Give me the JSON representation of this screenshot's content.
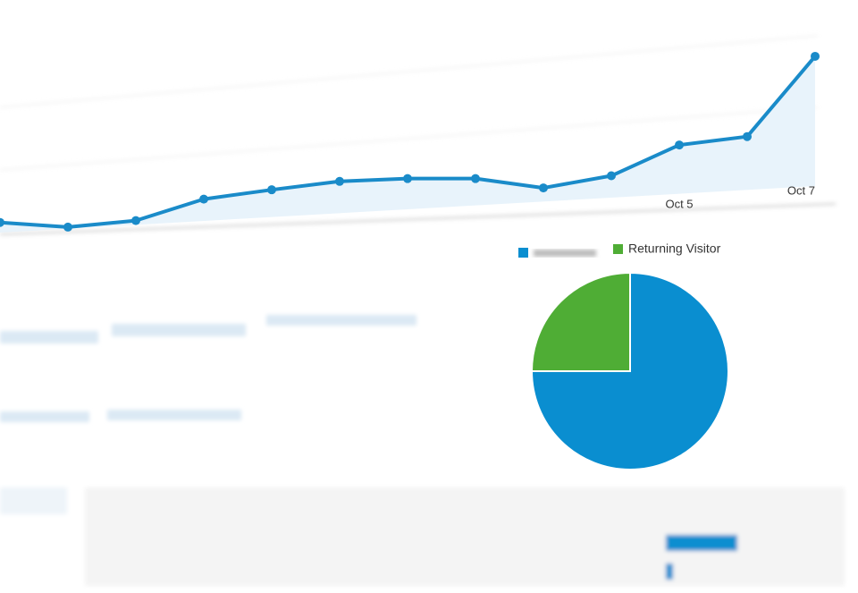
{
  "chart_data": [
    {
      "type": "line",
      "categories": [
        null,
        null,
        null,
        null,
        null,
        null,
        null,
        null,
        null,
        null,
        "Oct 5",
        null,
        "Oct 7"
      ],
      "series": [
        {
          "color": "#1a8bc9",
          "values": [
            30,
            25,
            32,
            55,
            65,
            74,
            77,
            77,
            67,
            80,
            113,
            122,
            208
          ]
        }
      ],
      "ylim": [
        0,
        230
      ]
    },
    {
      "type": "pie",
      "categories": [
        null,
        "Returning Visitor"
      ],
      "values": [
        75,
        25
      ],
      "colors": [
        "#0a8ed0",
        "#4fad35"
      ]
    }
  ]
}
